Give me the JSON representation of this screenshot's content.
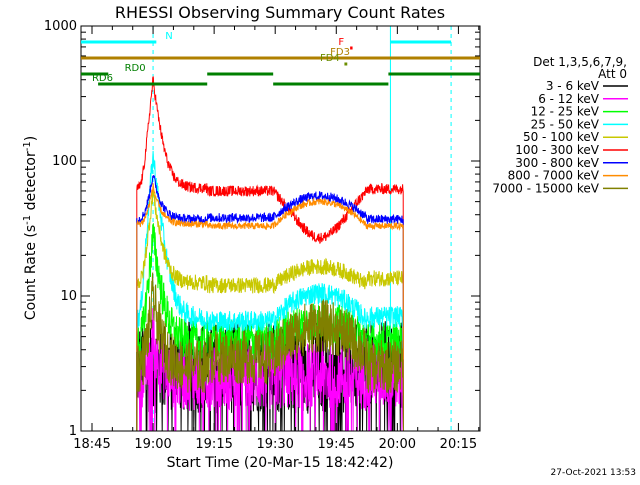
{
  "chart_data": {
    "type": "line",
    "title": "RHESSI Observing Summary Count Rates",
    "xlabel": "Start Time (20-Mar-15 18:42:42)",
    "ylabel_main": "Count Rate (s",
    "ylabel_sup": "-1",
    "ylabel_mid": " detector",
    "ylabel_end": ")",
    "footer": "27-Oct-2021 13:53",
    "legend_header": [
      "Det 1,3,5,6,7,9,",
      "Att 0"
    ],
    "y_scale": "log",
    "ylim": [
      1,
      1000
    ],
    "x_range_minutes": [
      -2.7,
      95.3
    ],
    "x_ticks": [
      {
        "label": "18:45",
        "m": 0
      },
      {
        "label": "19:00",
        "m": 15
      },
      {
        "label": "19:15",
        "m": 30
      },
      {
        "label": "19:30",
        "m": 45
      },
      {
        "label": "19:45",
        "m": 60
      },
      {
        "label": "20:00",
        "m": 75
      },
      {
        "label": "20:15",
        "m": 90
      }
    ],
    "y_ticks": [
      {
        "label": "1",
        "v": 1
      },
      {
        "label": "10",
        "v": 10
      },
      {
        "label": "100",
        "v": 100
      },
      {
        "label": "1000",
        "v": 1000
      }
    ],
    "vlines_dashed_minutes": [
      15.0,
      88.2
    ],
    "vlines_solid_minutes": [
      73.3
    ],
    "flags": [
      {
        "label": "N",
        "color": "#00ffff",
        "segments": [
          [
            -2.7,
            15.8
          ],
          [
            73.3,
            88.2
          ]
        ],
        "y": 1.0
      },
      {
        "label": "F",
        "color": "#ff0000",
        "segments": [
          [
            63.4,
            64.0
          ]
        ],
        "y": 2.0
      },
      {
        "label": "FD3",
        "color": "#b08000",
        "segments": [
          [
            -2.7,
            95.3
          ]
        ],
        "y": 3.0
      },
      {
        "label": "FD4",
        "color": "#6b8e00",
        "segments": [
          [
            62.0,
            62.7
          ]
        ],
        "y": 4.0
      },
      {
        "label": "RD0",
        "color": "#007f00",
        "segments": [
          [
            -2.7,
            4.0
          ],
          [
            28.3,
            44.5
          ],
          [
            72.8,
            95.3
          ]
        ],
        "y": 5.0
      },
      {
        "label": "RD6",
        "color": "#007f00",
        "segments": [
          [
            1.5,
            28.3
          ],
          [
            44.5,
            72.8
          ]
        ],
        "y": 6.0
      }
    ],
    "series": [
      {
        "name": "3 - 6 keV",
        "color": "#000000",
        "peak": 3.0,
        "t1": 3.0,
        "t2": 3.0,
        "t3": 3.0,
        "t4": 3.0,
        "noise": 0.35,
        "floor": 1.0
      },
      {
        "name": "6 - 12 keV",
        "color": "#ff00ff",
        "peak": 5.0,
        "t1": 2.5,
        "t2": 2.5,
        "t3": 2.6,
        "t4": 2.6,
        "noise": 0.25,
        "floor": 1.0
      },
      {
        "name": "12 - 25 keV",
        "color": "#00ff00",
        "peak": 28.0,
        "t1": 4.6,
        "t2": 4.7,
        "t3": 6.5,
        "t4": 4.6,
        "noise": 0.15,
        "floor": 3.0
      },
      {
        "name": "25 - 50 keV",
        "color": "#00ffff",
        "peak": 110.0,
        "t1": 6.8,
        "t2": 6.5,
        "t3": 10.5,
        "t4": 7.0,
        "noise": 0.08,
        "floor": 6.0
      },
      {
        "name": "50 - 100 keV",
        "color": "#c8c800",
        "peak": 60.0,
        "t1": 12.5,
        "t2": 12.0,
        "t3": 16.5,
        "t4": 13.5,
        "noise": 0.06,
        "floor": 9.0
      },
      {
        "name": "100 - 300 keV",
        "color": "#ff0000",
        "peak": 400.0,
        "t1": 63.0,
        "t2": 60.0,
        "t3": 27.0,
        "t4": 62.0,
        "noise": 0.04,
        "floor": 20.0
      },
      {
        "name": "300 - 800 keV",
        "color": "#0000ff",
        "peak": 80.0,
        "t1": 37.0,
        "t2": 38.0,
        "t3": 55.0,
        "t4": 37.0,
        "noise": 0.035,
        "floor": 30.0
      },
      {
        "name": "800 - 7000 keV",
        "color": "#ff8c00",
        "peak": 65.0,
        "t1": 34.0,
        "t2": 33.0,
        "t3": 50.0,
        "t4": 33.0,
        "noise": 0.025,
        "floor": 30.0
      },
      {
        "name": "7000 - 15000 keV",
        "color": "#808000",
        "peak": 10.0,
        "t1": 3.0,
        "t2": 3.5,
        "t3": 6.0,
        "t4": 3.0,
        "noise": 0.2,
        "floor": 2.0
      }
    ],
    "segments_minutes": [
      [
        11.0,
        28.3
      ],
      [
        28.3,
        44.5
      ],
      [
        44.5,
        67.5
      ],
      [
        67.5,
        73.3
      ],
      [
        73.3,
        76.5
      ]
    ],
    "peak_time_minutes": 15.0,
    "grid": false,
    "legend_position": "right"
  }
}
